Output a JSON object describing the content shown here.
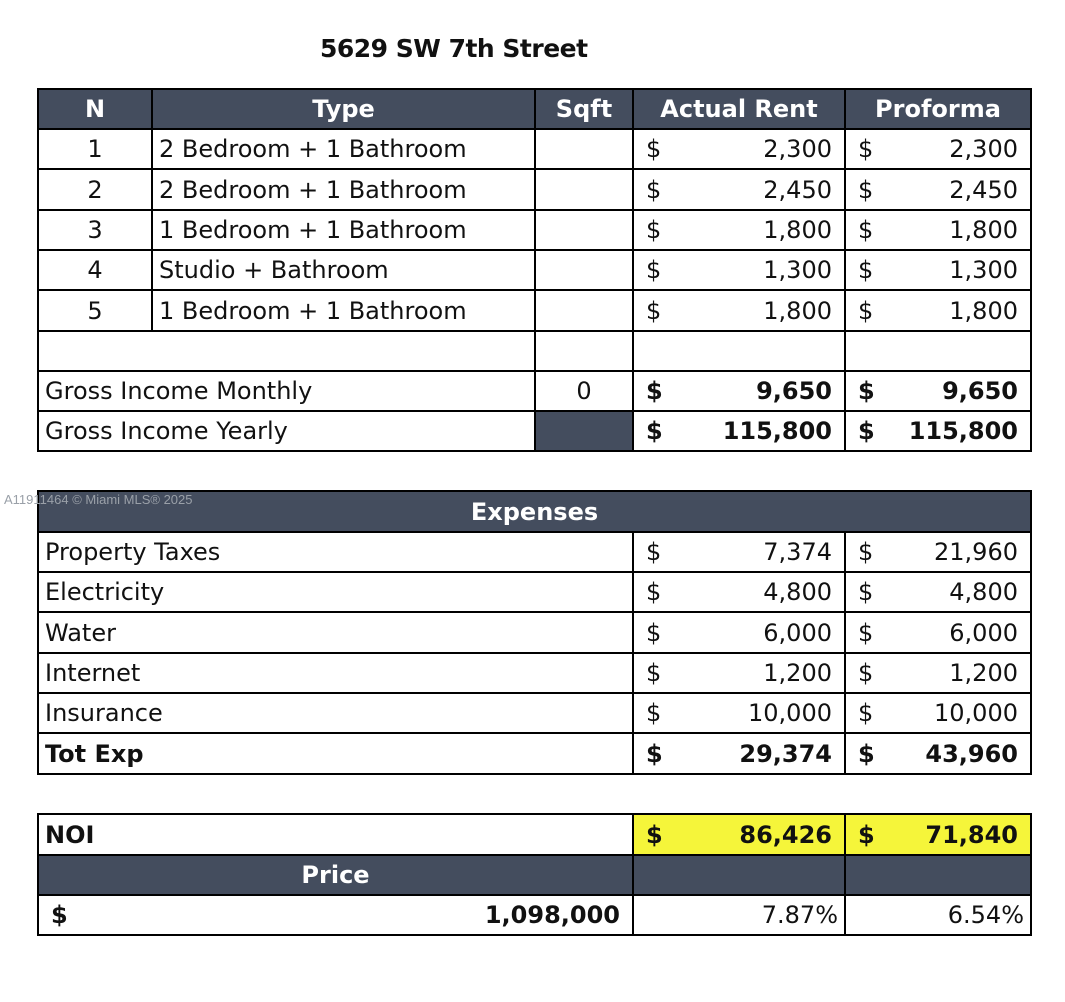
{
  "title": "5629 SW 7th Street",
  "watermark": "A11911464 © Miami MLS® 2025",
  "colors": {
    "header": "#444d5e",
    "highlight": "#f5f53a"
  },
  "units_table": {
    "headers": [
      "N",
      "Type",
      "Sqft",
      "Actual Rent",
      "Proforma"
    ],
    "rows": [
      {
        "n": "1",
        "type": "2 Bedroom + 1 Bathroom",
        "sqft": "",
        "actual": "2,300",
        "proforma": "2,300"
      },
      {
        "n": "2",
        "type": "2 Bedroom + 1 Bathroom",
        "sqft": "",
        "actual": "2,450",
        "proforma": "2,450"
      },
      {
        "n": "3",
        "type": "1 Bedroom + 1 Bathroom",
        "sqft": "",
        "actual": "1,800",
        "proforma": "1,800"
      },
      {
        "n": "4",
        "type": "Studio + Bathroom",
        "sqft": "",
        "actual": "1,300",
        "proforma": "1,300"
      },
      {
        "n": "5",
        "type": "1 Bedroom + 1 Bathroom",
        "sqft": "",
        "actual": "1,800",
        "proforma": "1,800"
      }
    ],
    "currency": "$",
    "gross_monthly": {
      "label": "Gross Income Monthly",
      "sqft": "0",
      "actual": "9,650",
      "proforma": "9,650"
    },
    "gross_yearly": {
      "label": "Gross Income Yearly",
      "actual": "115,800",
      "proforma": "115,800"
    }
  },
  "expenses": {
    "header": "Expenses",
    "rows": [
      {
        "label": "Property Taxes",
        "actual": "7,374",
        "proforma": "21,960"
      },
      {
        "label": "Electricity",
        "actual": "4,800",
        "proforma": "4,800"
      },
      {
        "label": "Water",
        "actual": "6,000",
        "proforma": "6,000"
      },
      {
        "label": "Internet",
        "actual": "1,200",
        "proforma": "1,200"
      },
      {
        "label": "Insurance",
        "actual": "10,000",
        "proforma": "10,000"
      }
    ],
    "total": {
      "label": "Tot Exp",
      "actual": "29,374",
      "proforma": "43,960"
    }
  },
  "noi": {
    "label": "NOI",
    "actual": "86,426",
    "proforma": "71,840",
    "price_label": "Price",
    "price": "1,098,000",
    "cap_actual": "7.87%",
    "cap_proforma": "6.54%"
  }
}
